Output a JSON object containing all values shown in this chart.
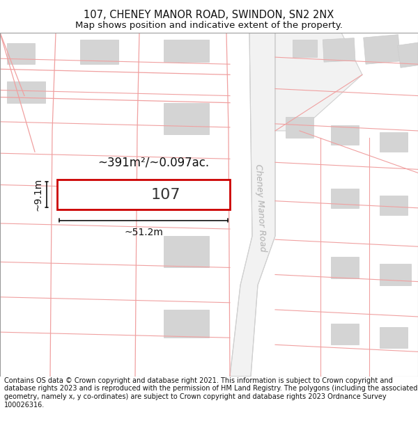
{
  "title_line1": "107, CHENEY MANOR ROAD, SWINDON, SN2 2NX",
  "title_line2": "Map shows position and indicative extent of the property.",
  "footer_text": "Contains OS data © Crown copyright and database right 2021. This information is subject to Crown copyright and database rights 2023 and is reproduced with the permission of HM Land Registry. The polygons (including the associated geometry, namely x, y co-ordinates) are subject to Crown copyright and database rights 2023 Ordnance Survey 100026316.",
  "map_bg": "#ffffff",
  "plot_outline_color": "#cc0000",
  "road_label": "Cheney Manor Road",
  "road_label_color": "#b0b0b0",
  "cadastral_line_color": "#f0a0a0",
  "building_fill_color": "#d4d4d4",
  "building_outline_color": "#cccccc",
  "dim_color": "#111111",
  "area_label": "~391m²/~0.097ac.",
  "width_label": "~51.2m",
  "height_label": "~9.1m",
  "plot_number": "107",
  "title_fontsize": 10.5,
  "subtitle_fontsize": 9.5,
  "footer_fontsize": 7.0
}
